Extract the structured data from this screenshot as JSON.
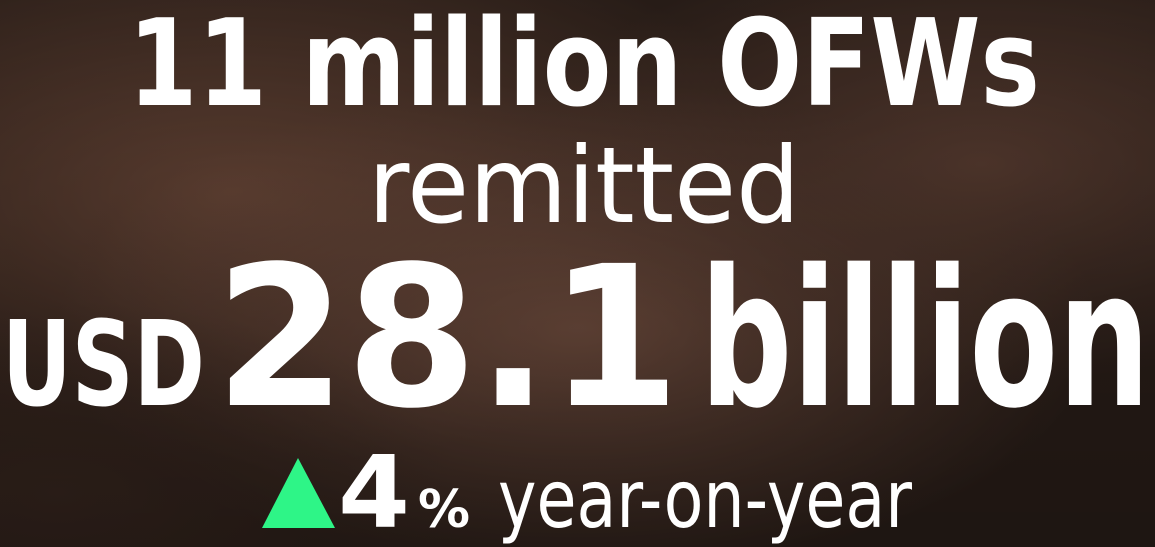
{
  "headline": "11 million OFWs",
  "verb": "remitted",
  "amount": {
    "currency": "USD",
    "number": "28.1",
    "unit": "billion"
  },
  "change": {
    "value": "4",
    "unit": "%",
    "text": "year-on-year"
  }
}
